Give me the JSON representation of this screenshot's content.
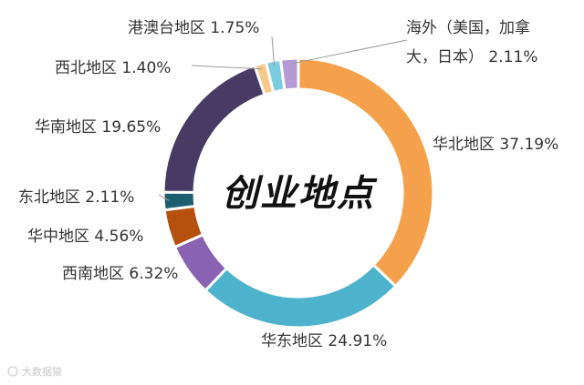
{
  "chart_data": {
    "type": "pie",
    "title": "创业地点",
    "donut": true,
    "slices": [
      {
        "label": "华北地区",
        "value": 37.19,
        "display": "华北地区 37.19%",
        "color": "#f5a04a"
      },
      {
        "label": "华东地区",
        "value": 24.91,
        "display": "华东地区 24.91%",
        "color": "#4db3cc"
      },
      {
        "label": "西南地区",
        "value": 6.32,
        "display": "西南地区 6.32%",
        "color": "#8a62b2"
      },
      {
        "label": "华中地区",
        "value": 4.56,
        "display": "华中地区 4.56%",
        "color": "#b5500f"
      },
      {
        "label": "东北地区",
        "value": 2.11,
        "display": "东北地区 2.11%",
        "color": "#1c5e6e"
      },
      {
        "label": "华南地区",
        "value": 19.65,
        "display": "华南地区 19.65%",
        "color": "#473a63"
      },
      {
        "label": "西北地区",
        "value": 1.4,
        "display": "西北地区 1.40%",
        "color": "#f6c98a"
      },
      {
        "label": "港澳台地区",
        "value": 1.75,
        "display": "港澳台地区 1.75%",
        "color": "#7ccde0"
      },
      {
        "label": "海外（美国，加拿大，日本）",
        "value": 2.11,
        "display_lines": [
          "海外（美国，加拿",
          "大，日本） 2.11%"
        ],
        "color": "#b59ad4"
      }
    ]
  },
  "watermark": "大数据猿"
}
